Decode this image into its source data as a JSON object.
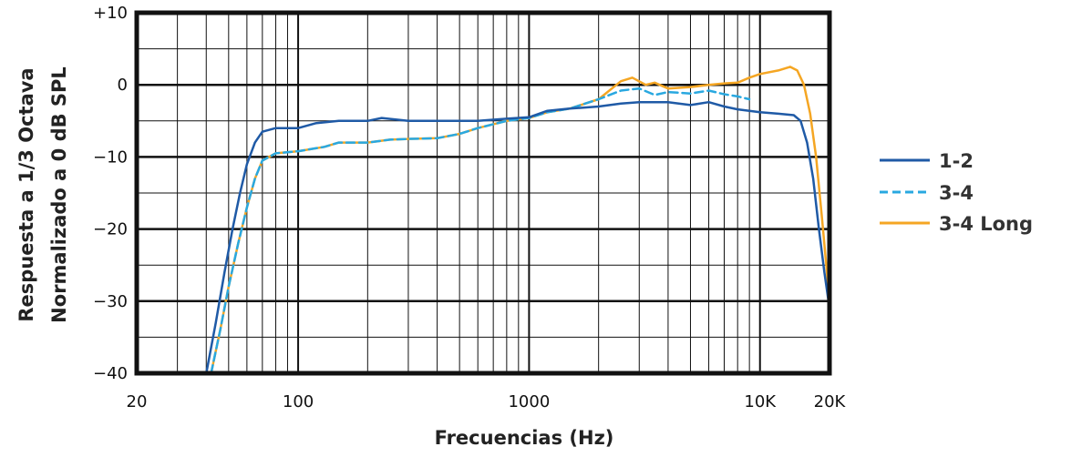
{
  "chart_data": {
    "type": "line",
    "xlabel": "Frecuencias (Hz)",
    "ylabel_line1": "Respuesta a 1/3 Octava",
    "ylabel_line2": "Normalizado a 0 dB SPL",
    "x_scale": "log",
    "xlim": [
      20,
      20000
    ],
    "ylim": [
      -40,
      10
    ],
    "grid": true,
    "legend_position": "right",
    "x_ticks": [
      {
        "value": 20,
        "label": "20"
      },
      {
        "value": 100,
        "label": "100"
      },
      {
        "value": 1000,
        "label": "1000"
      },
      {
        "value": 10000,
        "label": "10K"
      },
      {
        "value": 20000,
        "label": "20K"
      }
    ],
    "y_ticks": [
      {
        "value": 10,
        "label": "+10"
      },
      {
        "value": 0,
        "label": "0"
      },
      {
        "value": -10,
        "label": "−10"
      },
      {
        "value": -20,
        "label": "−20"
      },
      {
        "value": -30,
        "label": "−30"
      },
      {
        "value": -40,
        "label": "−40"
      }
    ],
    "series": [
      {
        "name": "1-2",
        "color": "#1f5aa6",
        "dash": "solid",
        "points": [
          [
            40,
            -40
          ],
          [
            44,
            -33
          ],
          [
            48,
            -26
          ],
          [
            52,
            -20
          ],
          [
            56,
            -15
          ],
          [
            60,
            -11
          ],
          [
            65,
            -8
          ],
          [
            70,
            -6.5
          ],
          [
            80,
            -6
          ],
          [
            100,
            -6
          ],
          [
            120,
            -5.3
          ],
          [
            150,
            -5
          ],
          [
            200,
            -5
          ],
          [
            230,
            -4.6
          ],
          [
            300,
            -5
          ],
          [
            400,
            -5
          ],
          [
            600,
            -5
          ],
          [
            800,
            -4.7
          ],
          [
            1000,
            -4.5
          ],
          [
            1200,
            -3.6
          ],
          [
            1500,
            -3.3
          ],
          [
            2000,
            -3
          ],
          [
            2500,
            -2.6
          ],
          [
            3000,
            -2.4
          ],
          [
            4000,
            -2.4
          ],
          [
            5000,
            -2.8
          ],
          [
            6000,
            -2.4
          ],
          [
            7000,
            -3
          ],
          [
            8000,
            -3.4
          ],
          [
            10000,
            -3.8
          ],
          [
            12000,
            -4
          ],
          [
            14000,
            -4.2
          ],
          [
            15000,
            -5
          ],
          [
            16000,
            -8
          ],
          [
            17000,
            -13
          ],
          [
            18000,
            -20
          ],
          [
            19000,
            -26
          ],
          [
            20000,
            -31
          ]
        ]
      },
      {
        "name": "3-4",
        "color": "#29a8e0",
        "dash": "dashed",
        "points": [
          [
            42,
            -40
          ],
          [
            46,
            -34
          ],
          [
            50,
            -28
          ],
          [
            55,
            -22
          ],
          [
            60,
            -17
          ],
          [
            65,
            -13
          ],
          [
            70,
            -10.5
          ],
          [
            80,
            -9.5
          ],
          [
            100,
            -9.2
          ],
          [
            130,
            -8.6
          ],
          [
            150,
            -8
          ],
          [
            200,
            -8
          ],
          [
            250,
            -7.6
          ],
          [
            300,
            -7.5
          ],
          [
            400,
            -7.4
          ],
          [
            500,
            -6.8
          ],
          [
            600,
            -6
          ],
          [
            800,
            -5
          ],
          [
            1000,
            -4.6
          ],
          [
            1200,
            -3.8
          ],
          [
            1500,
            -3.3
          ],
          [
            2000,
            -2
          ],
          [
            2500,
            -0.8
          ],
          [
            3000,
            -0.5
          ],
          [
            3500,
            -1.4
          ],
          [
            4000,
            -1
          ],
          [
            5000,
            -1.2
          ],
          [
            6000,
            -0.8
          ],
          [
            7000,
            -1.3
          ],
          [
            8000,
            -1.6
          ],
          [
            9000,
            -2
          ]
        ]
      },
      {
        "name": "3-4 Long",
        "color": "#f5a623",
        "dash": "solid",
        "points": [
          [
            42,
            -40
          ],
          [
            46,
            -34
          ],
          [
            50,
            -28
          ],
          [
            55,
            -22
          ],
          [
            60,
            -17
          ],
          [
            65,
            -13
          ],
          [
            70,
            -10.5
          ],
          [
            80,
            -9.5
          ],
          [
            100,
            -9.2
          ],
          [
            130,
            -8.6
          ],
          [
            150,
            -8
          ],
          [
            200,
            -8
          ],
          [
            250,
            -7.6
          ],
          [
            300,
            -7.5
          ],
          [
            400,
            -7.4
          ],
          [
            500,
            -6.8
          ],
          [
            600,
            -6
          ],
          [
            800,
            -5
          ],
          [
            1000,
            -4.6
          ],
          [
            1200,
            -3.8
          ],
          [
            1500,
            -3.3
          ],
          [
            2000,
            -2
          ],
          [
            2500,
            0.5
          ],
          [
            2800,
            1
          ],
          [
            3200,
            0
          ],
          [
            3500,
            0.3
          ],
          [
            4000,
            -0.5
          ],
          [
            5000,
            -0.3
          ],
          [
            6000,
            0
          ],
          [
            7000,
            0.2
          ],
          [
            8000,
            0.3
          ],
          [
            9000,
            1
          ],
          [
            10000,
            1.5
          ],
          [
            12000,
            2
          ],
          [
            13500,
            2.5
          ],
          [
            14500,
            2
          ],
          [
            15500,
            0
          ],
          [
            16500,
            -4
          ],
          [
            17500,
            -10
          ],
          [
            18500,
            -18
          ],
          [
            19500,
            -26
          ],
          [
            20000,
            -33
          ]
        ]
      }
    ]
  }
}
